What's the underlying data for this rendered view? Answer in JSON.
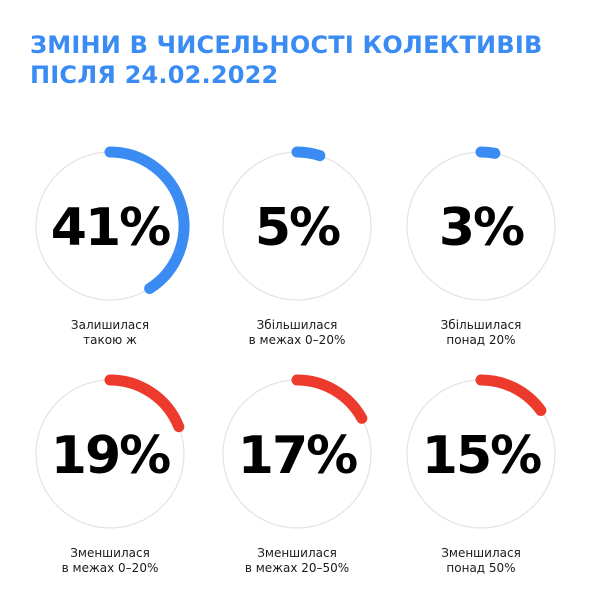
{
  "title": {
    "line1": "ЗМІНИ В ЧИСЕЛЬНОСТІ КОЛЕКТИВІВ",
    "line2": "ПІСЛЯ 24.02.2022"
  },
  "chart_data": {
    "type": "pie",
    "title": "ЗМІНИ В ЧИСЕЛЬНОСТІ КОЛЕКТИВІВ ПІСЛЯ 24.02.2022",
    "unit": "%",
    "colors": {
      "increase_or_same": "#3a8cf2",
      "decrease": "#ec3a2c",
      "ring": "#e3e3e3"
    },
    "items": [
      {
        "value": 41,
        "text": "41%",
        "label_line1": "Залишилася",
        "label_line2": "такою ж",
        "color": "#3a8cf2"
      },
      {
        "value": 5,
        "text": "5%",
        "label_line1": "Збільшилася",
        "label_line2": "в межах 0–20%",
        "color": "#3a8cf2"
      },
      {
        "value": 3,
        "text": "3%",
        "label_line1": "Збільшилася",
        "label_line2": "понад 20%",
        "color": "#3a8cf2"
      },
      {
        "value": 19,
        "text": "19%",
        "label_line1": "Зменшилася",
        "label_line2": "в межах 0–20%",
        "color": "#ec3a2c"
      },
      {
        "value": 17,
        "text": "17%",
        "label_line1": "Зменшилася",
        "label_line2": "в межах 20–50%",
        "color": "#ec3a2c"
      },
      {
        "value": 15,
        "text": "15%",
        "label_line1": "Зменшилася",
        "label_line2": "понад 50%",
        "color": "#ec3a2c"
      }
    ]
  }
}
